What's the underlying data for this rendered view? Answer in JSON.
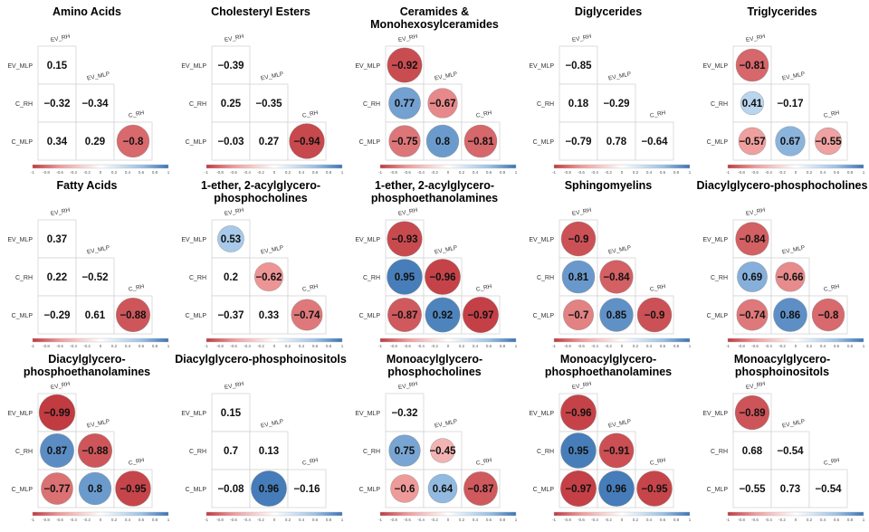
{
  "colors": {
    "negative": "#c0393f",
    "negative_light": "#ef9a9a",
    "positive": "#3b74b4",
    "positive_light": "#9cc2e6",
    "neutral": "#ffffff"
  },
  "colorbar_ticks": [
    "-1",
    "-0.8",
    "-0.6",
    "-0.4",
    "-0.2",
    "0",
    "0.2",
    "0.4",
    "0.6",
    "0.8",
    "1"
  ],
  "chart_data": [
    {
      "type": "heatmap",
      "title": "Amino Acids",
      "row_labels": [
        "EV_MLP",
        "C_RH",
        "C_MLP"
      ],
      "col_labels": [
        "EV_RH",
        "EV_MLP",
        "C_RH"
      ],
      "values": [
        [
          0.15
        ],
        [
          -0.32,
          -0.34
        ],
        [
          0.34,
          0.29,
          -0.8
        ]
      ],
      "display": [
        [
          "number"
        ],
        [
          "number",
          "number"
        ],
        [
          "number",
          "number",
          "circle"
        ]
      ]
    },
    {
      "type": "heatmap",
      "title": "Cholesteryl Esters",
      "row_labels": [
        "EV_MLP",
        "C_RH",
        "C_MLP"
      ],
      "col_labels": [
        "EV_RH",
        "EV_MLP",
        "C_RH"
      ],
      "values": [
        [
          -0.39
        ],
        [
          0.25,
          -0.35
        ],
        [
          -0.03,
          0.27,
          -0.94
        ]
      ],
      "display": [
        [
          "number"
        ],
        [
          "number",
          "number"
        ],
        [
          "number",
          "number",
          "circle"
        ]
      ]
    },
    {
      "type": "heatmap",
      "title": "Ceramides & Monohexosylceramides",
      "row_labels": [
        "EV_MLP",
        "C_RH",
        "C_MLP"
      ],
      "col_labels": [
        "EV_RH",
        "EV_MLP",
        "C_RH"
      ],
      "values": [
        [
          -0.92
        ],
        [
          0.77,
          -0.67
        ],
        [
          -0.75,
          0.8,
          -0.81
        ]
      ],
      "display": [
        [
          "circle"
        ],
        [
          "circle",
          "circle"
        ],
        [
          "circle",
          "circle",
          "circle"
        ]
      ]
    },
    {
      "type": "heatmap",
      "title": "Diglycerides",
      "row_labels": [
        "EV_MLP",
        "C_RH",
        "C_MLP"
      ],
      "col_labels": [
        "EV_RH",
        "EV_MLP",
        "C_RH"
      ],
      "values": [
        [
          -0.85
        ],
        [
          0.18,
          -0.29
        ],
        [
          -0.79,
          0.78,
          -0.64
        ]
      ],
      "display": [
        [
          "number"
        ],
        [
          "number",
          "number"
        ],
        [
          "number",
          "number",
          "number"
        ]
      ]
    },
    {
      "type": "heatmap",
      "title": "Triglycerides",
      "row_labels": [
        "EV_MLP",
        "C_RH",
        "C_MLP"
      ],
      "col_labels": [
        "EV_RH",
        "EV_MLP",
        "C_RH"
      ],
      "values": [
        [
          -0.81
        ],
        [
          0.41,
          -0.17
        ],
        [
          -0.57,
          0.67,
          -0.55
        ]
      ],
      "display": [
        [
          "circle"
        ],
        [
          "circle",
          "number"
        ],
        [
          "circle",
          "circle",
          "circle"
        ]
      ]
    },
    {
      "type": "heatmap",
      "title": "Fatty Acids",
      "row_labels": [
        "EV_MLP",
        "C_RH",
        "C_MLP"
      ],
      "col_labels": [
        "EV_RH",
        "EV_MLP",
        "C_RH"
      ],
      "values": [
        [
          0.37
        ],
        [
          0.22,
          -0.52
        ],
        [
          -0.29,
          0.61,
          -0.88
        ]
      ],
      "display": [
        [
          "number"
        ],
        [
          "number",
          "number"
        ],
        [
          "number",
          "number",
          "circle"
        ]
      ]
    },
    {
      "type": "heatmap",
      "title": "1-ether, 2-acylglycero-phosphocholines",
      "row_labels": [
        "EV_MLP",
        "C_RH",
        "C_MLP"
      ],
      "col_labels": [
        "EV_RH",
        "EV_MLP",
        "C_RH"
      ],
      "values": [
        [
          0.53
        ],
        [
          0.2,
          -0.62
        ],
        [
          -0.37,
          0.33,
          -0.74
        ]
      ],
      "display": [
        [
          "circle"
        ],
        [
          "number",
          "circle"
        ],
        [
          "number",
          "number",
          "circle"
        ]
      ]
    },
    {
      "type": "heatmap",
      "title": "1-ether, 2-acylglycero-phosphoethanolamines",
      "row_labels": [
        "EV_MLP",
        "C_RH",
        "C_MLP"
      ],
      "col_labels": [
        "EV_RH",
        "EV_MLP",
        "C_RH"
      ],
      "values": [
        [
          -0.93
        ],
        [
          0.95,
          -0.96
        ],
        [
          -0.87,
          0.92,
          -0.97
        ]
      ],
      "display": [
        [
          "circle"
        ],
        [
          "circle",
          "circle"
        ],
        [
          "circle",
          "circle",
          "circle"
        ]
      ]
    },
    {
      "type": "heatmap",
      "title": "Sphingomyelins",
      "row_labels": [
        "EV_MLP",
        "C_RH",
        "C_MLP"
      ],
      "col_labels": [
        "EV_RH",
        "EV_MLP",
        "C_RH"
      ],
      "values": [
        [
          -0.9
        ],
        [
          0.81,
          -0.84
        ],
        [
          -0.7,
          0.85,
          -0.9
        ]
      ],
      "display": [
        [
          "circle"
        ],
        [
          "circle",
          "circle"
        ],
        [
          "circle",
          "circle",
          "circle"
        ]
      ]
    },
    {
      "type": "heatmap",
      "title": "Diacylglycero-phosphocholines",
      "row_labels": [
        "EV_MLP",
        "C_RH",
        "C_MLP"
      ],
      "col_labels": [
        "EV_RH",
        "EV_MLP",
        "C_RH"
      ],
      "values": [
        [
          -0.84
        ],
        [
          0.69,
          -0.66
        ],
        [
          -0.74,
          0.86,
          -0.8
        ]
      ],
      "display": [
        [
          "circle"
        ],
        [
          "circle",
          "circle"
        ],
        [
          "circle",
          "circle",
          "circle"
        ]
      ]
    },
    {
      "type": "heatmap",
      "title": "Diacylglycero-phosphoethanolamines",
      "row_labels": [
        "EV_MLP",
        "C_RH",
        "C_MLP"
      ],
      "col_labels": [
        "EV_RH",
        "EV_MLP",
        "C_RH"
      ],
      "values": [
        [
          -0.99
        ],
        [
          0.87,
          -0.88
        ],
        [
          -0.77,
          0.8,
          -0.95
        ]
      ],
      "display": [
        [
          "circle"
        ],
        [
          "circle",
          "circle"
        ],
        [
          "circle",
          "circle",
          "circle"
        ]
      ]
    },
    {
      "type": "heatmap",
      "title": "Diacylglycero-phosphoinositols",
      "row_labels": [
        "EV_MLP",
        "C_RH",
        "C_MLP"
      ],
      "col_labels": [
        "EV_RH",
        "EV_MLP",
        "C_RH"
      ],
      "values": [
        [
          0.15
        ],
        [
          0.7,
          0.13
        ],
        [
          -0.08,
          0.96,
          -0.16
        ]
      ],
      "display": [
        [
          "number"
        ],
        [
          "number",
          "number"
        ],
        [
          "number",
          "circle",
          "number"
        ]
      ]
    },
    {
      "type": "heatmap",
      "title": "Monoacylglycero-phosphocholines",
      "row_labels": [
        "EV_MLP",
        "C_RH",
        "C_MLP"
      ],
      "col_labels": [
        "EV_RH",
        "EV_MLP",
        "C_RH"
      ],
      "values": [
        [
          -0.32
        ],
        [
          0.75,
          -0.45
        ],
        [
          -0.6,
          0.64,
          -0.87
        ]
      ],
      "display": [
        [
          "number"
        ],
        [
          "circle",
          "circle"
        ],
        [
          "circle",
          "circle",
          "circle"
        ]
      ]
    },
    {
      "type": "heatmap",
      "title": "Monoacylglycero-phosphoethanolamines",
      "row_labels": [
        "EV_MLP",
        "C_RH",
        "C_MLP"
      ],
      "col_labels": [
        "EV_RH",
        "EV_MLP",
        "C_RH"
      ],
      "values": [
        [
          -0.96
        ],
        [
          0.95,
          -0.91
        ],
        [
          -0.97,
          0.96,
          -0.95
        ]
      ],
      "display": [
        [
          "circle"
        ],
        [
          "circle",
          "circle"
        ],
        [
          "circle",
          "circle",
          "circle"
        ]
      ]
    },
    {
      "type": "heatmap",
      "title": "Monoacylglycero-phosphoinositols",
      "row_labels": [
        "EV_MLP",
        "C_RH",
        "C_MLP"
      ],
      "col_labels": [
        "EV_RH",
        "EV_MLP",
        "C_RH"
      ],
      "values": [
        [
          -0.89
        ],
        [
          0.68,
          -0.54
        ],
        [
          -0.55,
          0.73,
          -0.54
        ]
      ],
      "display": [
        [
          "circle"
        ],
        [
          "number",
          "number"
        ],
        [
          "number",
          "number",
          "number"
        ]
      ]
    }
  ]
}
